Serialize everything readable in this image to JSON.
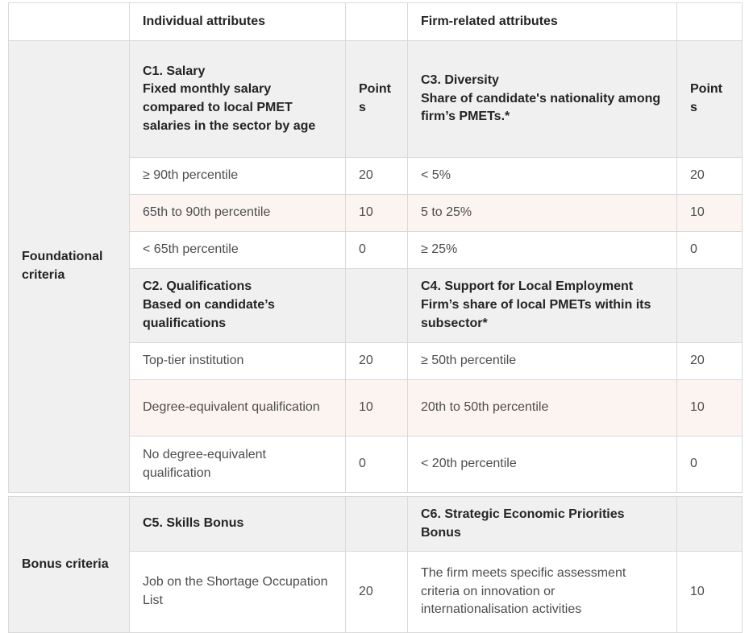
{
  "table": {
    "points_label": "Points",
    "top_header": {
      "individual": "Individual attributes",
      "firm": "Firm-related attributes"
    },
    "foundational": {
      "label": "Foundational criteria",
      "c1": {
        "title": "C1. Salary",
        "desc": "Fixed monthly salary compared to local PMET salaries in the sector by age"
      },
      "c3": {
        "title": "C3. Diversity",
        "desc": "Share of candidate's nationality among firm’s PMETs.*"
      },
      "salary_rows": [
        {
          "left": "≥ 90th percentile",
          "left_pts": "20",
          "right": "< 5%",
          "right_pts": "20"
        },
        {
          "left": "65th to 90th percentile",
          "left_pts": "10",
          "right": "5 to 25%",
          "right_pts": "10"
        },
        {
          "left": "< 65th percentile",
          "left_pts": "0",
          "right": "≥ 25%",
          "right_pts": "0"
        }
      ],
      "c2": {
        "title": "C2. Qualifications",
        "desc": "Based on candidate’s qualifications"
      },
      "c4": {
        "title": "C4. Support for Local Employment",
        "desc": "Firm’s share of local PMETs within its subsector*"
      },
      "qual_rows": [
        {
          "left": "Top-tier institution",
          "left_pts": "20",
          "right": "≥ 50th percentile",
          "right_pts": "20"
        },
        {
          "left": "Degree-equivalent qualification",
          "left_pts": "10",
          "right": "20th to 50th percentile",
          "right_pts": "10"
        },
        {
          "left": "No degree-equivalent qualification",
          "left_pts": "0",
          "right": "< 20th percentile",
          "right_pts": "0"
        }
      ]
    },
    "bonus": {
      "label": "Bonus criteria",
      "c5": {
        "title": "C5. Skills Bonus"
      },
      "c6": {
        "title": "C6. Strategic Economic Priorities Bonus"
      },
      "rows": [
        {
          "left": "Job on the Shortage Occupation List",
          "left_pts": "20",
          "right": "The firm meets specific assessment criteria on innovation or internationalisation activities",
          "right_pts": "10"
        }
      ]
    }
  },
  "colors": {
    "section_header_bg": "#f0f0f0",
    "alt_row_bg": "#fcf4f1",
    "border": "#d9d9d9",
    "heading_text": "#242424",
    "body_text": "#4d4d4d"
  }
}
